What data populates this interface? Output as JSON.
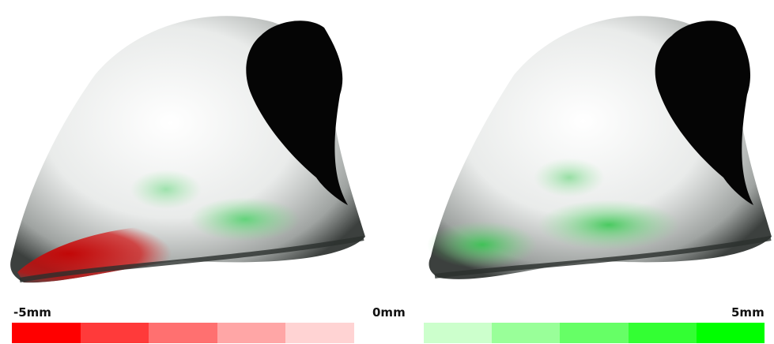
{
  "figure": {
    "left_render": {
      "name": "deviation-map-negative"
    },
    "right_render": {
      "name": "deviation-map-positive"
    }
  },
  "scale": {
    "min_label": "-5mm",
    "mid_label": "0mm",
    "max_label": "5mm",
    "negative_colors": [
      "#ff0000",
      "#ff3a3a",
      "#ff7070",
      "#ffa6a6",
      "#ffd3d3"
    ],
    "positive_colors": [
      "#ccffcc",
      "#99ff99",
      "#66ff66",
      "#33ff33",
      "#00ff00"
    ]
  }
}
